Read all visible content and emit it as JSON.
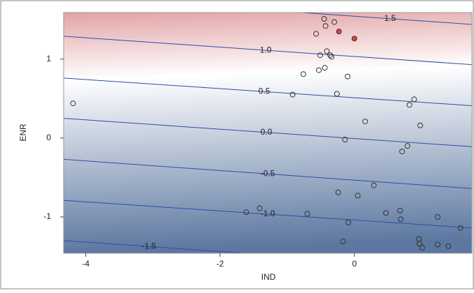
{
  "chart_data": {
    "type": "contour-scatter",
    "x_label": "IND",
    "y_label": "ENR",
    "xlim": [
      -4.33,
      1.75
    ],
    "ylim": [
      -1.46,
      1.59
    ],
    "xticks": [
      -4,
      -2,
      0
    ],
    "yticks": [
      -1,
      0,
      1
    ],
    "contours": [
      {
        "label": "1.5",
        "x": [
          -4.33,
          1.75
        ],
        "y": [
          1.8,
          1.44
        ]
      },
      {
        "label": "1.0",
        "x": [
          -4.33,
          1.75
        ],
        "y": [
          1.29,
          0.93
        ]
      },
      {
        "label": "0.5",
        "x": [
          -4.33,
          1.75
        ],
        "y": [
          0.76,
          0.41
        ]
      },
      {
        "label": "0.0",
        "x": [
          -4.33,
          1.75
        ],
        "y": [
          0.25,
          -0.11
        ]
      },
      {
        "label": "-0.5",
        "x": [
          -4.33,
          1.75
        ],
        "y": [
          -0.27,
          -0.64
        ]
      },
      {
        "label": "-1.0",
        "x": [
          -4.33,
          1.75
        ],
        "y": [
          -0.79,
          -1.14
        ]
      },
      {
        "label": "-1.5",
        "x": [
          -4.33,
          1.75
        ],
        "y": [
          -1.3,
          -1.66
        ]
      }
    ],
    "contour_color": "#2a4fa8",
    "points": {
      "color": "#333333",
      "x": [
        -4.19,
        -0.45,
        -0.3,
        -0.43,
        -0.57,
        -0.41,
        -0.36,
        -0.51,
        -0.34,
        -0.44,
        -0.53,
        -0.76,
        -0.1,
        -0.92,
        -0.26,
        0.89,
        0.82,
        0.16,
        0.98,
        -0.14,
        0.79,
        0.71,
        -0.24,
        0.29,
        0.05,
        -1.61,
        -1.41,
        -0.7,
        0.47,
        0.68,
        0.69,
        1.24,
        -0.09,
        1.58,
        0.96,
        0.97,
        1.01,
        1.24,
        1.4,
        -0.17
      ],
      "y": [
        0.44,
        1.51,
        1.47,
        1.42,
        1.32,
        1.1,
        1.05,
        1.05,
        1.03,
        0.89,
        0.86,
        0.81,
        0.78,
        0.55,
        0.56,
        0.49,
        0.42,
        0.21,
        0.16,
        -0.02,
        -0.1,
        -0.17,
        -0.69,
        -0.6,
        -0.73,
        -0.94,
        -0.89,
        -0.96,
        -0.95,
        -0.92,
        -1.03,
        -1.0,
        -1.07,
        -1.14,
        -1.28,
        -1.34,
        -1.39,
        -1.35,
        -1.37,
        -1.31
      ]
    },
    "highlight_points": {
      "color": "#e0403c",
      "x": [
        -0.23,
        0.0
      ],
      "y": [
        1.35,
        1.26
      ]
    },
    "gradient": [
      "#e2a3a5",
      "#ffffff",
      "#5c77a0"
    ]
  }
}
